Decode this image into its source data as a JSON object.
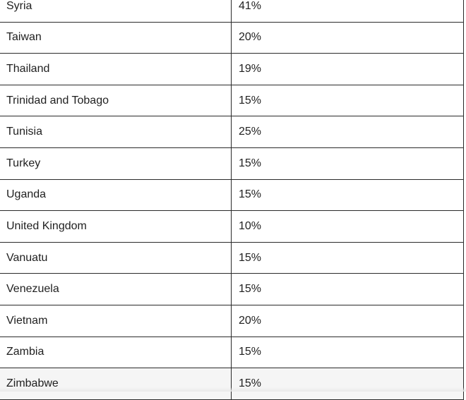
{
  "table": {
    "rows": [
      {
        "country": "Syria",
        "rate": "41%"
      },
      {
        "country": "Taiwan",
        "rate": "20%"
      },
      {
        "country": "Thailand",
        "rate": "19%"
      },
      {
        "country": "Trinidad and Tobago",
        "rate": "15%"
      },
      {
        "country": "Tunisia",
        "rate": "25%"
      },
      {
        "country": "Turkey",
        "rate": "15%"
      },
      {
        "country": "Uganda",
        "rate": "15%"
      },
      {
        "country": "United Kingdom",
        "rate": "10%"
      },
      {
        "country": "Vanuatu",
        "rate": "15%"
      },
      {
        "country": "Venezuela",
        "rate": "15%"
      },
      {
        "country": "Vietnam",
        "rate": "20%"
      },
      {
        "country": "Zambia",
        "rate": "15%"
      },
      {
        "country": "Zimbabwe",
        "rate": "15%"
      }
    ]
  }
}
